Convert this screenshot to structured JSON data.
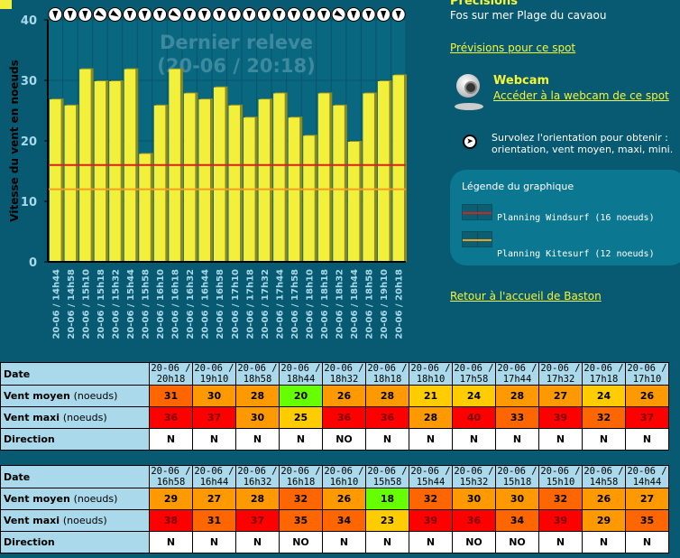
{
  "chart_data": {
    "type": "bar",
    "ylabel": "Vitesse du vent en noeuds",
    "ylim": [
      0,
      40
    ],
    "yticks": [
      0,
      10,
      20,
      30,
      40
    ],
    "watermark": [
      "Dernier releve",
      "(20-06 / 20:18)"
    ],
    "categories": [
      "20-06 / 14h44",
      "20-06 / 14h58",
      "20-06 / 15h10",
      "20-06 / 15h18",
      "20-06 / 15h32",
      "20-06 / 15h44",
      "20-06 / 15h58",
      "20-06 / 16h10",
      "20-06 / 16h18",
      "20-06 / 16h32",
      "20-06 / 16h44",
      "20-06 / 16h58",
      "20-06 / 17h10",
      "20-06 / 17h18",
      "20-06 / 17h32",
      "20-06 / 17h44",
      "20-06 / 17h58",
      "20-06 / 18h10",
      "20-06 / 18h18",
      "20-06 / 18h32",
      "20-06 / 18h44",
      "20-06 / 18h58",
      "20-06 / 19h10",
      "20-06 / 20h18"
    ],
    "values": [
      27,
      26,
      32,
      30,
      30,
      32,
      18,
      26,
      32,
      28,
      27,
      29,
      26,
      24,
      27,
      28,
      24,
      21,
      28,
      26,
      20,
      28,
      30,
      31
    ],
    "directions": [
      "N",
      "N",
      "N",
      "NO",
      "NO",
      "N",
      "N",
      "N",
      "NO",
      "N",
      "N",
      "N",
      "N",
      "N",
      "N",
      "N",
      "N",
      "N",
      "N",
      "NO",
      "N",
      "N",
      "N",
      "N"
    ],
    "thresholds": [
      {
        "name": "Planning Windsurf",
        "value": 16,
        "color": "#d8201e"
      },
      {
        "name": "Planning Kitesurf",
        "value": 12,
        "color": "#f0a020"
      }
    ],
    "bar_color": "#f2f03a"
  },
  "side": {
    "heading": "Précisions",
    "spot": "Fos sur mer Plage du cavaou",
    "forecast_link": "Prévisions pour ce spot",
    "webcam_title": "Webcam",
    "webcam_link": "Accéder à la webcam de ce spot",
    "hint1": "Survolez l'orientation pour obtenir :",
    "hint2": "orientation, vent moyen, maxi, mini.",
    "legend_title": "Légende du graphique",
    "legend_wind": "Planning Windsurf (16 noeuds)",
    "legend_kite": "Planning Kitesurf (12 noeuds)",
    "back_link": "Retour à l'accueil de Baston"
  },
  "table_labels": {
    "date": "Date",
    "moyen": "Vent moyen",
    "maxi": "Vent maxi",
    "unit": "(noeuds)",
    "direction": "Direction"
  },
  "color_scale": [
    {
      "max": 20,
      "color": "#66ff00"
    },
    {
      "max": 25,
      "color": "#ffcc00"
    },
    {
      "max": 30,
      "color": "#ff9900"
    },
    {
      "max": 35,
      "color": "#ff6600"
    },
    {
      "max": 99,
      "color": "#ff0000"
    }
  ],
  "tables": [
    {
      "rows": [
        {
          "d": "20-06 /",
          "t": "20h18",
          "m": 31,
          "x": 36,
          "dir": "N"
        },
        {
          "d": "20-06 /",
          "t": "19h10",
          "m": 30,
          "x": 37,
          "dir": "N"
        },
        {
          "d": "20-06 /",
          "t": "18h58",
          "m": 28,
          "x": 30,
          "dir": "N"
        },
        {
          "d": "20-06 /",
          "t": "18h44",
          "m": 20,
          "x": 25,
          "dir": "N"
        },
        {
          "d": "20-06 /",
          "t": "18h32",
          "m": 26,
          "x": 36,
          "dir": "NO"
        },
        {
          "d": "20-06 /",
          "t": "18h18",
          "m": 28,
          "x": 36,
          "dir": "N"
        },
        {
          "d": "20-06 /",
          "t": "18h10",
          "m": 21,
          "x": 28,
          "dir": "N"
        },
        {
          "d": "20-06 /",
          "t": "17h58",
          "m": 24,
          "x": 40,
          "dir": "N"
        },
        {
          "d": "20-06 /",
          "t": "17h44",
          "m": 28,
          "x": 33,
          "dir": "N"
        },
        {
          "d": "20-06 /",
          "t": "17h32",
          "m": 27,
          "x": 39,
          "dir": "N"
        },
        {
          "d": "20-06 /",
          "t": "17h18",
          "m": 24,
          "x": 32,
          "dir": "N"
        },
        {
          "d": "20-06 /",
          "t": "17h10",
          "m": 26,
          "x": 37,
          "dir": "N"
        }
      ]
    },
    {
      "rows": [
        {
          "d": "20-06 /",
          "t": "16h58",
          "m": 29,
          "x": 38,
          "dir": "N"
        },
        {
          "d": "20-06 /",
          "t": "16h44",
          "m": 27,
          "x": 31,
          "dir": "N"
        },
        {
          "d": "20-06 /",
          "t": "16h32",
          "m": 28,
          "x": 37,
          "dir": "N"
        },
        {
          "d": "20-06 /",
          "t": "16h18",
          "m": 32,
          "x": 35,
          "dir": "NO"
        },
        {
          "d": "20-06 /",
          "t": "16h10",
          "m": 26,
          "x": 34,
          "dir": "N"
        },
        {
          "d": "20-06 /",
          "t": "15h58",
          "m": 18,
          "x": 23,
          "dir": "N"
        },
        {
          "d": "20-06 /",
          "t": "15h44",
          "m": 32,
          "x": 39,
          "dir": "N"
        },
        {
          "d": "20-06 /",
          "t": "15h32",
          "m": 30,
          "x": 36,
          "dir": "NO"
        },
        {
          "d": "20-06 /",
          "t": "15h18",
          "m": 30,
          "x": 34,
          "dir": "NO"
        },
        {
          "d": "20-06 /",
          "t": "15h10",
          "m": 32,
          "x": 39,
          "dir": "N"
        },
        {
          "d": "20-06 /",
          "t": "14h58",
          "m": 26,
          "x": 29,
          "dir": "N"
        },
        {
          "d": "20-06 /",
          "t": "14h44",
          "m": 27,
          "x": 35,
          "dir": "N"
        }
      ]
    }
  ]
}
